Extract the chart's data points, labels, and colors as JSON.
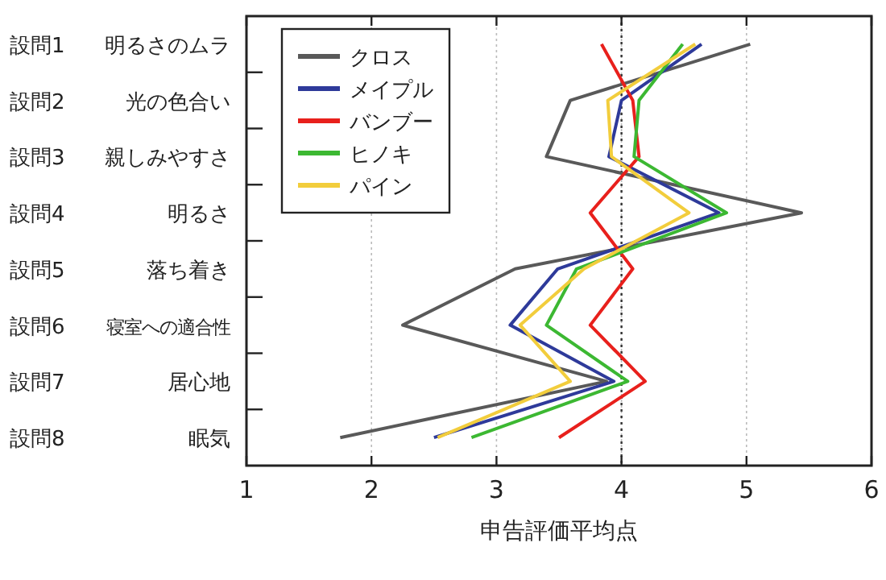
{
  "chart_data": {
    "type": "line",
    "orientation": "horizontal",
    "xlabel": "申告評価平均点",
    "categories": [
      "設問1 明るさのムラ",
      "設問2 光の色合い",
      "設問3 親しみやすさ",
      "設問4 明るさ",
      "設問5 落ち着き",
      "設問6 寝室への適合性",
      "設問7 居心地",
      "設問8 眠気"
    ],
    "series": [
      {
        "name": "クロス",
        "color": "#595959",
        "values": [
          5.03,
          3.59,
          3.4,
          5.44,
          3.15,
          2.25,
          3.88,
          1.75
        ]
      },
      {
        "name": "メイプル",
        "color": "#2e3a9a",
        "values": [
          4.64,
          4.0,
          3.9,
          4.78,
          3.49,
          3.11,
          3.94,
          2.5
        ]
      },
      {
        "name": "バンブー",
        "color": "#e8201c",
        "values": [
          3.84,
          4.09,
          4.14,
          3.75,
          4.09,
          3.75,
          4.19,
          3.5
        ]
      },
      {
        "name": "ヒノキ",
        "color": "#3cb832",
        "values": [
          4.49,
          4.14,
          4.1,
          4.84,
          3.64,
          3.4,
          4.05,
          2.8
        ]
      },
      {
        "name": "パイン",
        "color": "#f2cd3c",
        "values": [
          4.59,
          3.89,
          3.92,
          4.54,
          3.7,
          3.19,
          3.59,
          2.53
        ]
      }
    ],
    "xlim": [
      1,
      6
    ],
    "xticks": [
      1,
      2,
      3,
      4,
      5,
      6
    ],
    "grid": "x",
    "ref_lines": [
      {
        "axis": "x",
        "value": 4,
        "color": "#333333",
        "line_style": "dotted"
      }
    ],
    "legend": "top left",
    "line_style": "solid",
    "marker": "none"
  }
}
